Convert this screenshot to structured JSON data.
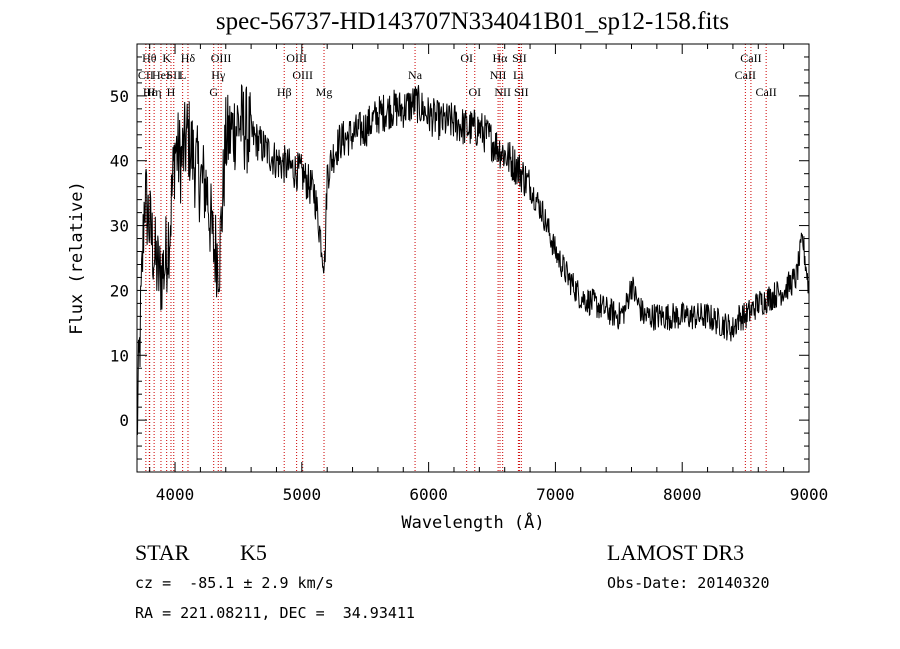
{
  "chart_data": {
    "type": "line",
    "title": "spec-56737-HD143707N334041B01_sp12-158.fits",
    "xlabel": "Wavelength (Å)",
    "ylabel": "Flux (relative)",
    "xlim": [
      3700,
      9000
    ],
    "ylim": [
      -8,
      58
    ],
    "xticks": [
      4000,
      5000,
      6000,
      7000,
      8000,
      9000
    ],
    "yticks": [
      0,
      10,
      20,
      30,
      40,
      50
    ],
    "grid": false,
    "series_color": "#000000",
    "line_color": "#cc0000",
    "spectrum_anchors": {
      "x": [
        3700,
        3760,
        3800,
        3840,
        3880,
        3920,
        3960,
        4000,
        4050,
        4100,
        4150,
        4200,
        4250,
        4300,
        4350,
        4400,
        4500,
        4600,
        4700,
        4800,
        4900,
        5000,
        5100,
        5150,
        5180,
        5200,
        5250,
        5300,
        5400,
        5500,
        5600,
        5700,
        5800,
        5900,
        6000,
        6100,
        6200,
        6300,
        6400,
        6500,
        6600,
        6700,
        6800,
        6900,
        7000,
        7100,
        7200,
        7300,
        7400,
        7500,
        7550,
        7600,
        7650,
        7700,
        7800,
        7900,
        8000,
        8100,
        8200,
        8300,
        8400,
        8450,
        8500,
        8550,
        8600,
        8700,
        8800,
        8900,
        8950,
        9000
      ],
      "y": [
        -2,
        35,
        30,
        25,
        22,
        24,
        30,
        42,
        40,
        44,
        40,
        37,
        36,
        27,
        25,
        43,
        46,
        44,
        42,
        40,
        39,
        38,
        35,
        28,
        24,
        38,
        41,
        43,
        44,
        45,
        47,
        48,
        48,
        49,
        47,
        46,
        46,
        45,
        45,
        43,
        41,
        39,
        36,
        32,
        26,
        22,
        19,
        18,
        17,
        16,
        17,
        21,
        18,
        16,
        16,
        16,
        16,
        16,
        16,
        15,
        14,
        16,
        16,
        17,
        18,
        19,
        20,
        22,
        28,
        20
      ],
      "noise_amplitude": 2.2
    },
    "spectral_lines": [
      {
        "label": "Hθ",
        "x": 3797,
        "row": 1
      },
      {
        "label": "CII",
        "x": 3770,
        "row": 2
      },
      {
        "label": "Hη",
        "x": 3835,
        "row": 3
      },
      {
        "label": "Hε",
        "x": 3800,
        "row": 3
      },
      {
        "label": "K",
        "x": 3934,
        "row": 1
      },
      {
        "label": "HeI",
        "x": 3889,
        "row": 2
      },
      {
        "label": "H",
        "x": 3968,
        "row": 3
      },
      {
        "label": "SII",
        "x": 3990,
        "row": 2
      },
      {
        "label": "Hδ",
        "x": 4102,
        "row": 1
      },
      {
        "label": "L",
        "x": 4060,
        "row": 2
      },
      {
        "label": "OIII",
        "x": 4363,
        "row": 1
      },
      {
        "label": "Hγ",
        "x": 4341,
        "row": 2
      },
      {
        "label": "G",
        "x": 4305,
        "row": 3
      },
      {
        "label": "OIII",
        "x": 4959,
        "row": 1
      },
      {
        "label": "OIII",
        "x": 5007,
        "row": 2
      },
      {
        "label": "Hβ",
        "x": 4861,
        "row": 3
      },
      {
        "label": "Mg",
        "x": 5175,
        "row": 3
      },
      {
        "label": "Na",
        "x": 5893,
        "row": 2
      },
      {
        "label": "OI",
        "x": 6300,
        "row": 1
      },
      {
        "label": "OI",
        "x": 6364,
        "row": 3
      },
      {
        "label": "Hα",
        "x": 6563,
        "row": 1
      },
      {
        "label": "SII",
        "x": 6716,
        "row": 1
      },
      {
        "label": "NII",
        "x": 6548,
        "row": 2
      },
      {
        "label": "Li",
        "x": 6708,
        "row": 2
      },
      {
        "label": "NII",
        "x": 6584,
        "row": 3
      },
      {
        "label": "SII",
        "x": 6731,
        "row": 3
      },
      {
        "label": "CaII",
        "x": 8542,
        "row": 1
      },
      {
        "label": "CaII",
        "x": 8498,
        "row": 2
      },
      {
        "label": "CaII",
        "x": 8662,
        "row": 3
      }
    ]
  },
  "info": {
    "object_class": "STAR",
    "subclass": "K5",
    "survey": "LAMOST DR3",
    "redshift": "cz =  -85.1 ± 2.9 km/s",
    "obs_date": "Obs-Date: 20140320",
    "coords": "RA = 221.08211, DEC =  34.93411"
  }
}
